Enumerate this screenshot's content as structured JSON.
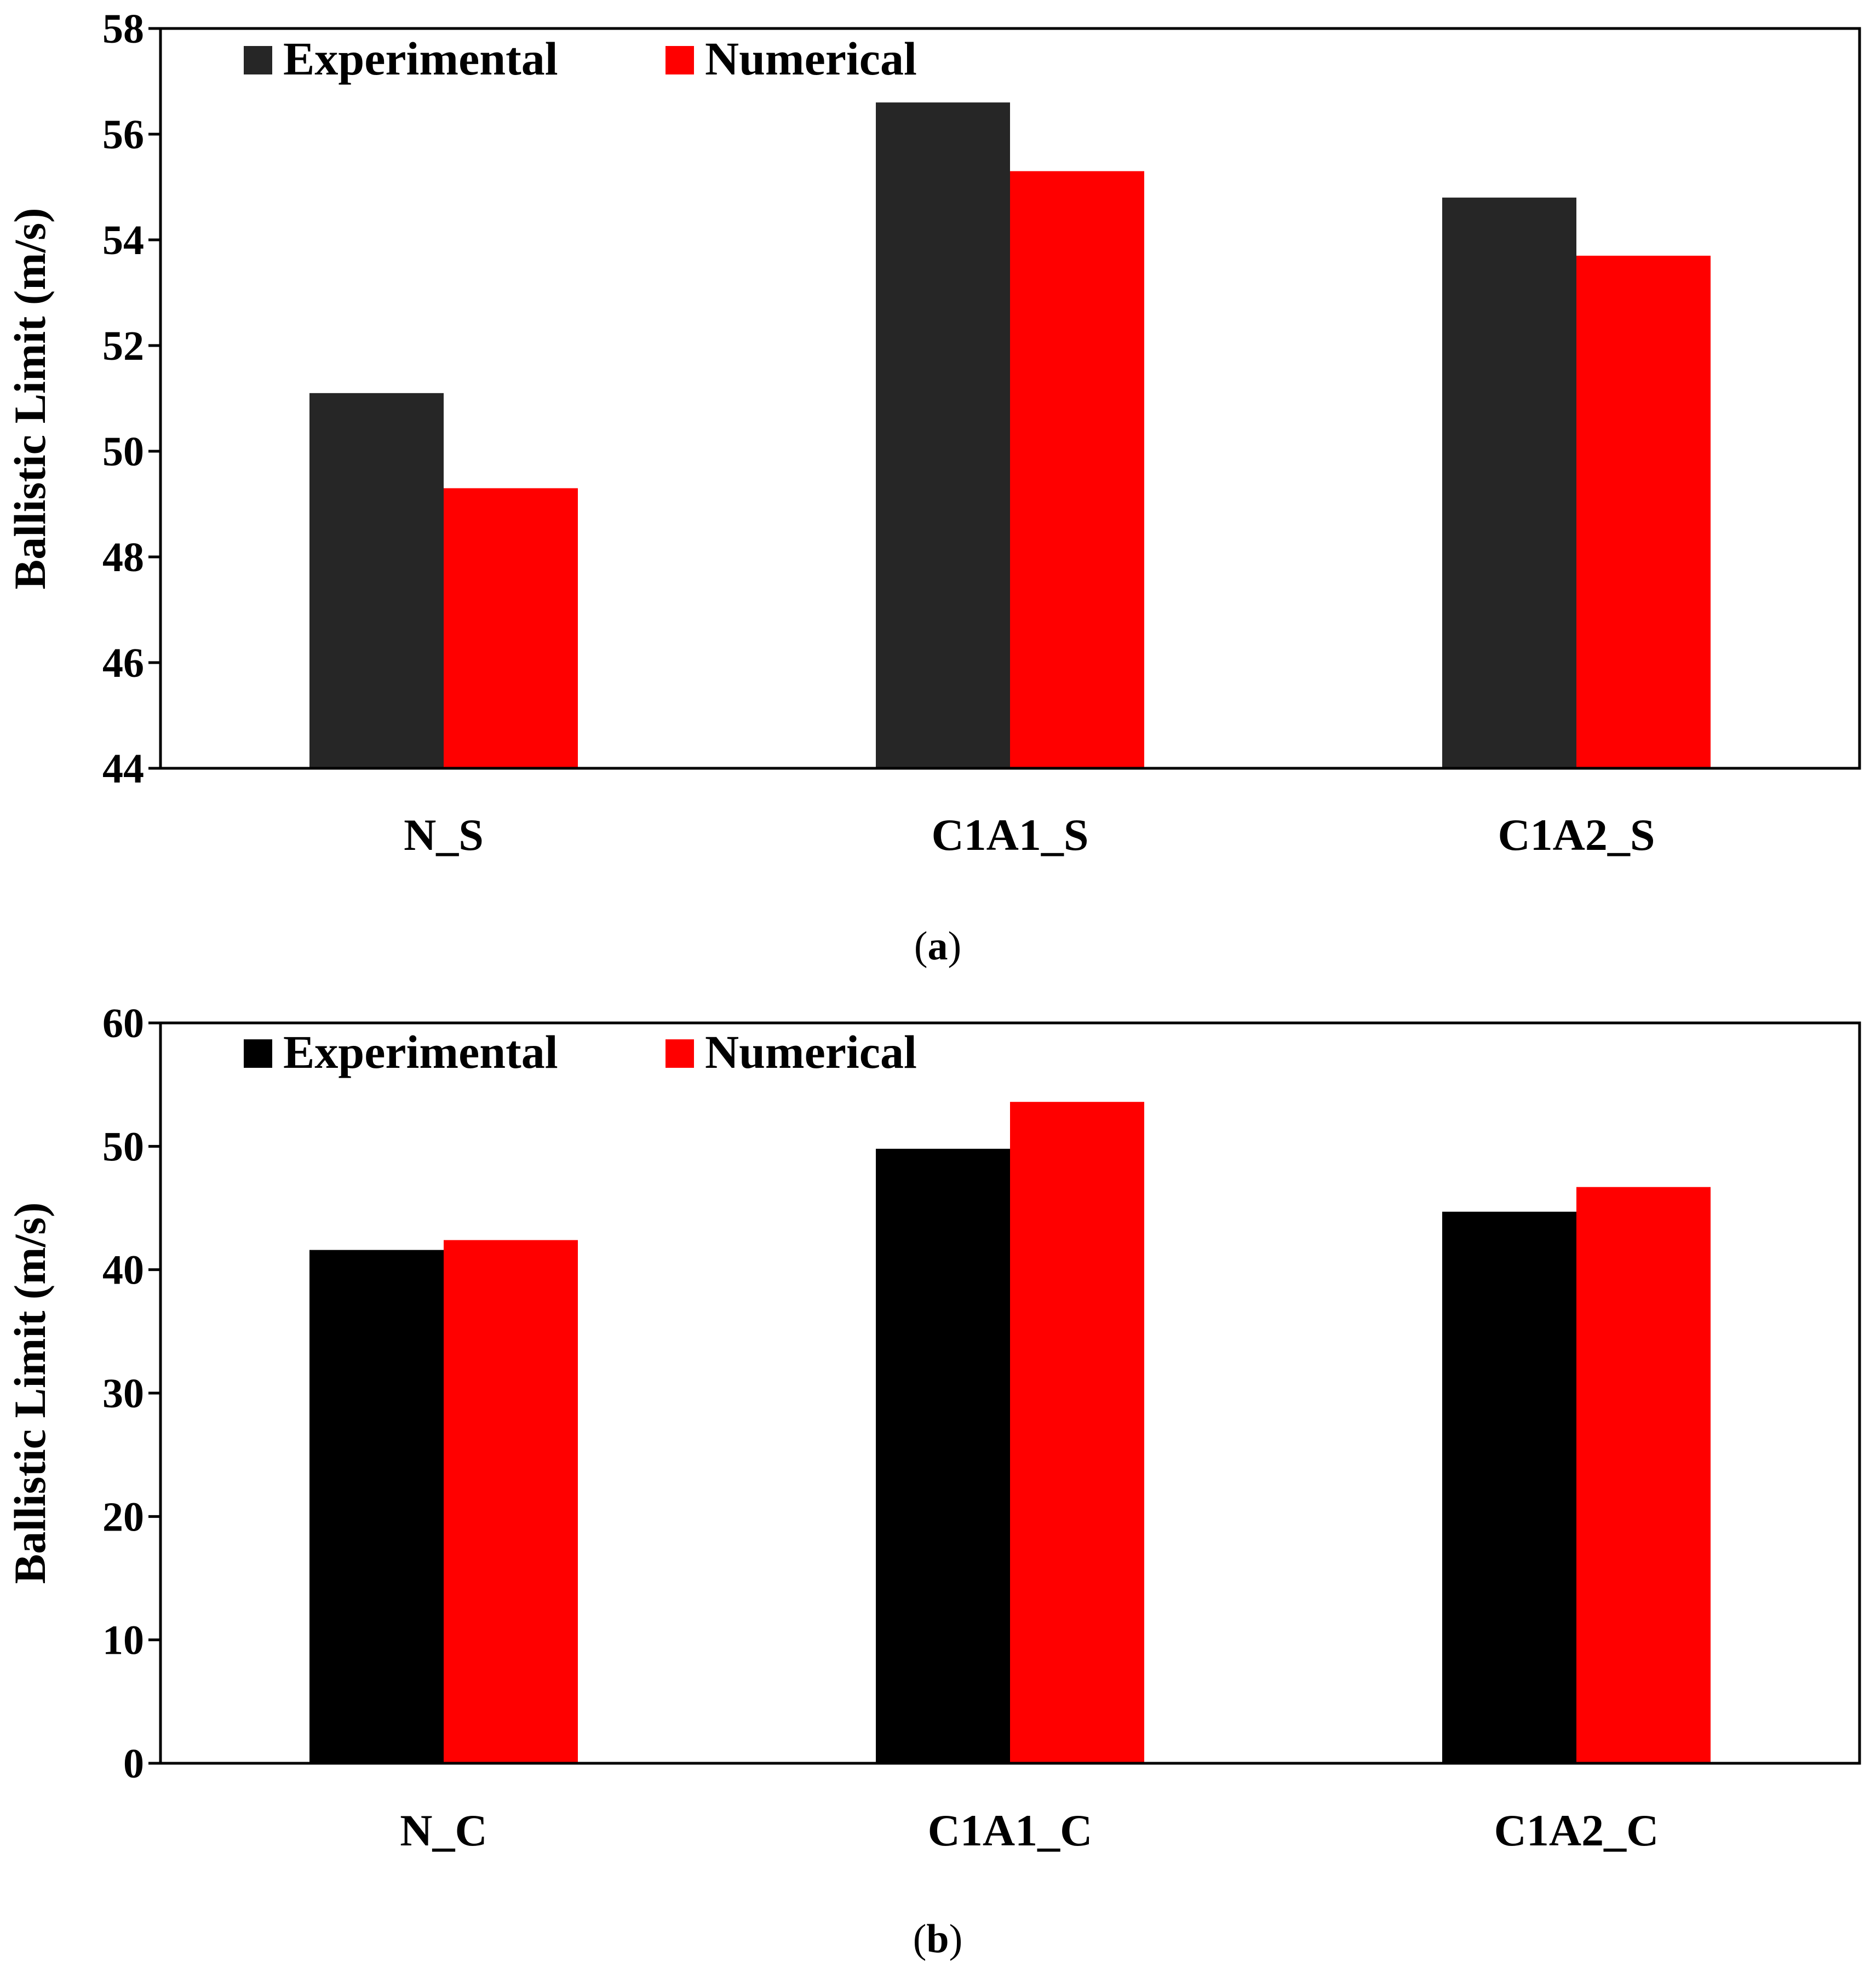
{
  "chart_data": [
    {
      "type": "bar",
      "caption_letter": "a",
      "categories": [
        "N_S",
        "C1A1_S",
        "C1A2_S"
      ],
      "series": [
        {
          "name": "Experimental",
          "values": [
            51.1,
            56.6,
            54.8
          ]
        },
        {
          "name": "Numerical",
          "values": [
            49.3,
            55.3,
            53.7
          ]
        }
      ],
      "ylabel": "Ballistic Limit (m/s)",
      "xlabel": "",
      "ylim": [
        44,
        58
      ],
      "yticks": [
        44,
        46,
        48,
        50,
        52,
        54,
        56,
        58
      ],
      "legend": "top-left",
      "grid": false
    },
    {
      "type": "bar",
      "caption_letter": "b",
      "categories": [
        "N_C",
        "C1A1_C",
        "C1A2_C"
      ],
      "series": [
        {
          "name": "Experimental",
          "values": [
            41.6,
            49.8,
            44.7
          ]
        },
        {
          "name": "Numerical",
          "values": [
            42.4,
            53.6,
            46.7
          ]
        }
      ],
      "ylabel": "Ballistic Limit (m/s)",
      "xlabel": "",
      "ylim": [
        0,
        60
      ],
      "yticks": [
        0,
        10,
        20,
        30,
        40,
        50,
        60
      ],
      "legend": "top-left",
      "grid": false
    }
  ],
  "colors": {
    "a": {
      "Experimental": "#262626",
      "Numerical": "#ff0000"
    },
    "b": {
      "Experimental": "#000000",
      "Numerical": "#ff0000"
    }
  }
}
